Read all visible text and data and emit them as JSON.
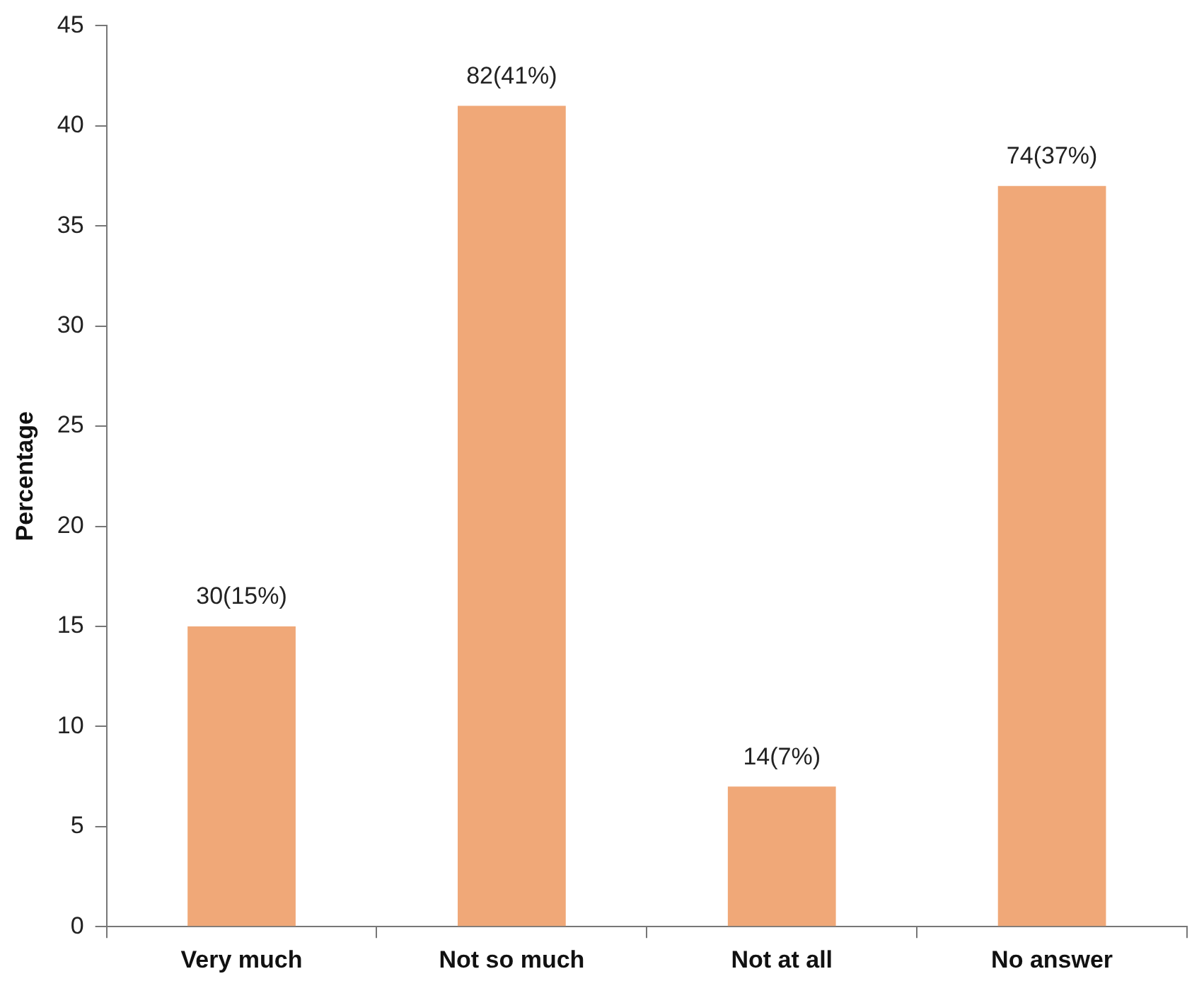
{
  "chart_data": {
    "type": "bar",
    "ylabel": "Percentage",
    "categories": [
      "Very much",
      "Not so much",
      "Not at all",
      "No answer"
    ],
    "values": [
      15,
      41,
      7,
      37
    ],
    "value_labels": [
      "30(15%)",
      "82(41%)",
      "14(7%)",
      "74(37%)"
    ],
    "color": "#f0a878",
    "ylim": [
      0,
      45
    ],
    "yticks": [
      0,
      5,
      10,
      15,
      20,
      25,
      30,
      35,
      40,
      45
    ],
    "grid": false,
    "legend": false
  }
}
